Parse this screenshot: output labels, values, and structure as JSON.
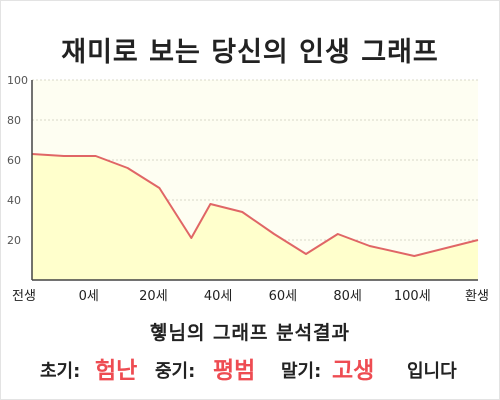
{
  "title": "재미로 보는 당신의 인생 그래프",
  "summary": "혷님의 그래프 분석결과",
  "result": {
    "early_label": "초기:",
    "early_value": "험난",
    "mid_label": "중기:",
    "mid_value": "평범",
    "late_label": "말기:",
    "late_value": "고생",
    "suffix": "입니다"
  },
  "colors": {
    "line": "#e06666",
    "fill": "#ffffcc",
    "plot_bg": "#fefef2",
    "grid": "#d8d8c8",
    "accent": "#ee4c52"
  },
  "chart_data": {
    "type": "area",
    "title": "",
    "xlabel": "",
    "ylabel": "",
    "ylim": [
      0,
      100
    ],
    "yticks": [
      20,
      40,
      60,
      80,
      100
    ],
    "grid": true,
    "categories": [
      "전생",
      "0세",
      "20세",
      "40세",
      "60세",
      "80세",
      "100세",
      "환생"
    ],
    "x": [
      -20,
      -10,
      0,
      10,
      20,
      30,
      36,
      46,
      56,
      66,
      76,
      86,
      100,
      120
    ],
    "series": [
      {
        "values": [
          63,
          62,
          62,
          56,
          46,
          21,
          38,
          34,
          23,
          13,
          23,
          17,
          12,
          20
        ]
      }
    ]
  }
}
